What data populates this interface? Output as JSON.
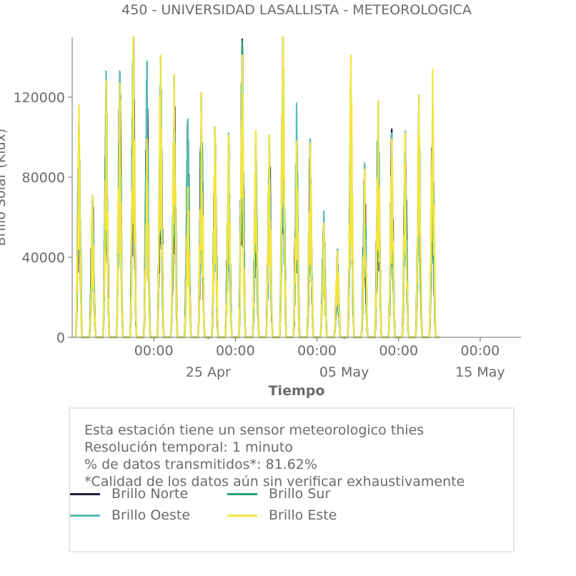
{
  "title": "450 - UNIVERSIDAD LASALLISTA - METEOROLOGICA",
  "info": {
    "line1": "Esta estación tiene un sensor meteorologico thies",
    "line2": "Resolución temporal: 1 minuto",
    "line3": "% de datos transmitidos*: 81.62%",
    "line4": "*Calidad de los datos aún sin verificar exhaustivamente"
  },
  "chart_data": {
    "type": "line",
    "title": "450 - UNIVERSIDAD LASALLISTA - METEOROLOGICA",
    "xlabel": "Tiempo",
    "ylabel": "Brillo Solar (Klux)",
    "ylim": [
      0,
      150000
    ],
    "yticks": [
      0,
      40000,
      80000,
      120000
    ],
    "ytick_labels": [
      "0",
      "40000",
      "80000",
      "120000"
    ],
    "x_range": [
      "2024-04-15",
      "2024-05-18"
    ],
    "x_major_ticks": [
      {
        "date": "2024-04-21",
        "label": "00:00"
      },
      {
        "date": "2024-04-27",
        "label": "00:00"
      },
      {
        "date": "2024-05-03",
        "label": "00:00"
      },
      {
        "date": "2024-05-09",
        "label": "00:00"
      },
      {
        "date": "2024-05-15",
        "label": "00:00"
      }
    ],
    "x_minor_labels": [
      {
        "date": "2024-04-25",
        "label": "25 Apr"
      },
      {
        "date": "2024-05-05",
        "label": "05 May"
      },
      {
        "date": "2024-05-15",
        "label": "15 May"
      }
    ],
    "legend_location": "bottom, inside info box",
    "grid": false,
    "days": [
      "04-15",
      "04-16",
      "04-17",
      "04-18",
      "04-19",
      "04-20",
      "04-21",
      "04-22",
      "04-23",
      "04-24",
      "04-25",
      "04-26",
      "04-27",
      "04-28",
      "04-29",
      "04-30",
      "05-01",
      "05-02",
      "05-03",
      "05-04",
      "05-05",
      "05-06",
      "05-07",
      "05-08",
      "05-09",
      "05-10",
      "05-11"
    ],
    "series": [
      {
        "name": "Brillo Norte",
        "color": "#1d1f3a",
        "daily_peak": [
          106000,
          70000,
          128000,
          132000,
          150000,
          137000,
          140000,
          131000,
          108000,
          122000,
          105000,
          101000,
          149000,
          97000,
          100000,
          158000,
          95000,
          99000,
          60000,
          44000,
          120000,
          86000,
          118000,
          104000,
          102000,
          121000,
          113000
        ]
      },
      {
        "name": "Brillo Sur",
        "color": "#22a07e",
        "daily_peak": [
          104000,
          68000,
          126000,
          130000,
          150000,
          135000,
          138000,
          128000,
          106000,
          120000,
          103000,
          99000,
          148000,
          95000,
          98000,
          156000,
          93000,
          97000,
          59000,
          42000,
          118000,
          84000,
          116000,
          102000,
          100000,
          119000,
          110000
        ]
      },
      {
        "name": "Brillo Oeste",
        "color": "#5bbcb5",
        "daily_peak": [
          107000,
          71000,
          133000,
          133000,
          148000,
          138000,
          136000,
          121000,
          109000,
          112000,
          104000,
          102000,
          140000,
          96000,
          101000,
          149000,
          117000,
          99000,
          63000,
          44000,
          104000,
          87000,
          118000,
          102000,
          103000,
          121000,
          113000
        ]
      },
      {
        "name": "Brillo Este",
        "color": "#f3e53f",
        "daily_peak": [
          116000,
          71000,
          128000,
          127000,
          152000,
          99000,
          141000,
          131000,
          75000,
          122000,
          105000,
          101000,
          141000,
          103000,
          101000,
          160000,
          98000,
          97000,
          57000,
          43000,
          141000,
          84000,
          118000,
          99000,
          102000,
          121000,
          134000
        ]
      }
    ]
  }
}
